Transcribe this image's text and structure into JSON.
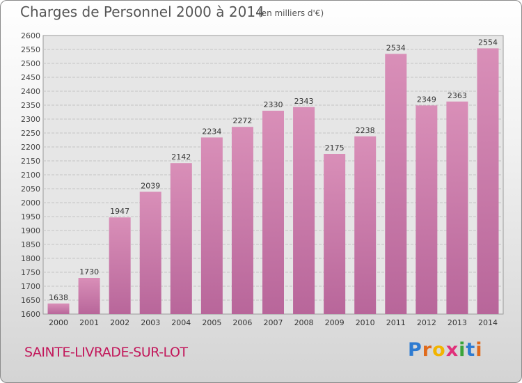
{
  "chart_data": {
    "type": "bar",
    "title": "Charges de Personnel 2000 à 2014",
    "subtitle": "(en milliers d'€)",
    "categories": [
      "2000",
      "2001",
      "2002",
      "2003",
      "2004",
      "2005",
      "2006",
      "2007",
      "2008",
      "2009",
      "2010",
      "2011",
      "2012",
      "2013",
      "2014"
    ],
    "values": [
      1638,
      1730,
      1947,
      2039,
      2142,
      2234,
      2272,
      2330,
      2343,
      2175,
      2238,
      2534,
      2349,
      2363,
      2554
    ],
    "ylim": [
      1600,
      2600
    ],
    "yticks": [
      1600,
      1650,
      1700,
      1750,
      1800,
      1850,
      1900,
      1950,
      2000,
      2050,
      2100,
      2150,
      2200,
      2250,
      2300,
      2350,
      2400,
      2450,
      2500,
      2550,
      2600
    ],
    "grid": true,
    "bar_color": "#d98fb8",
    "bar_color_dark": "#b8669a"
  },
  "footer": {
    "city": "SAINTE-LIVRADE-SUR-LOT",
    "logo": [
      "P",
      "r",
      "o",
      "x",
      "i",
      "t",
      "i"
    ]
  }
}
